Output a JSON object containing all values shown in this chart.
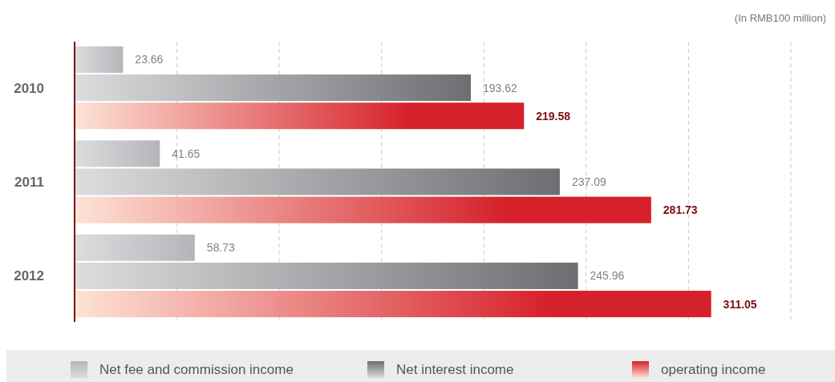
{
  "chart_data": {
    "type": "bar",
    "orientation": "horizontal",
    "annotations": [
      "(In RMB100 million)"
    ],
    "categories": [
      "2010",
      "2011",
      "2012"
    ],
    "series": [
      {
        "name": "Net fee and commission income",
        "color": "#b4b5b8",
        "values": [
          23.66,
          41.65,
          58.73
        ]
      },
      {
        "name": "Net interest income",
        "color": "#6d6e71",
        "values": [
          193.62,
          237.09,
          245.96
        ]
      },
      {
        "name": "operating income",
        "color": "#d6202a",
        "values": [
          219.58,
          281.73,
          311.05
        ]
      }
    ],
    "xlim": [
      0,
      350
    ],
    "xticks": [
      {
        "value": 50,
        "label": null
      },
      {
        "value": 100,
        "label": null
      },
      {
        "value": 150,
        "label": null
      },
      {
        "value": 200,
        "label": null
      },
      {
        "value": 250,
        "label": null
      },
      {
        "value": 300,
        "label": null
      },
      {
        "value": 350,
        "label": null
      }
    ],
    "grid": "x",
    "data_labels": true,
    "legend": "bottom",
    "tick_labels": "y"
  }
}
